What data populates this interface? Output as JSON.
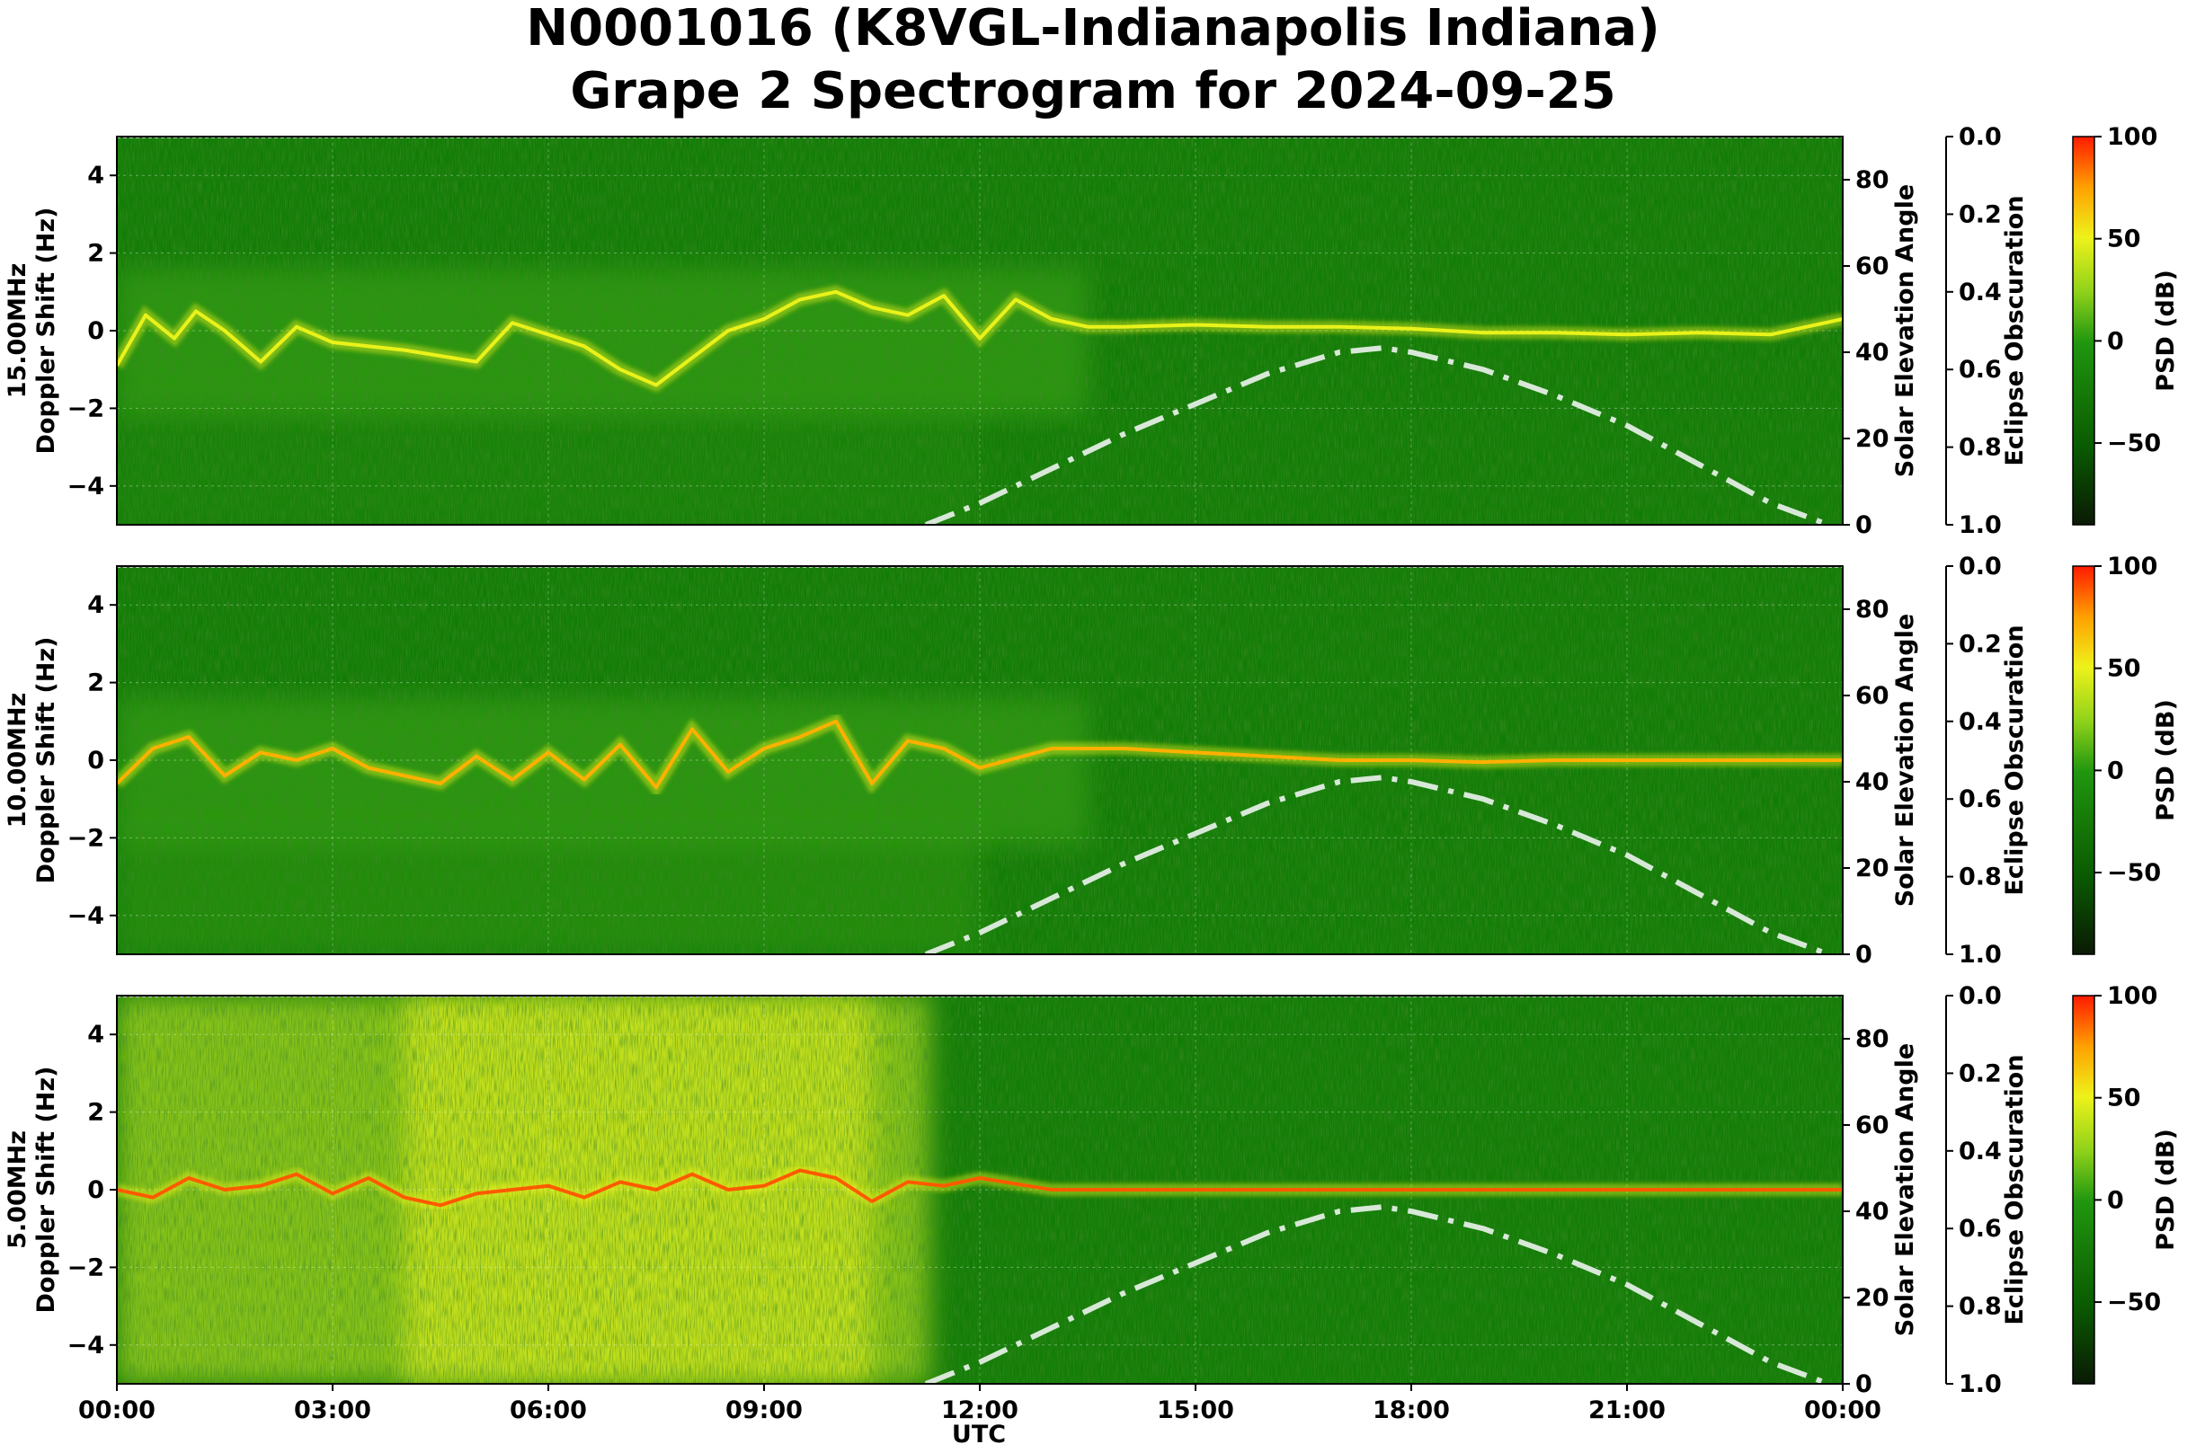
{
  "title": {
    "line1": "N0001016 (K8VGL-Indianapolis Indiana)",
    "line2": "Grape 2 Spectrogram for 2024-09-25"
  },
  "chart_data": {
    "type": "heatmap",
    "xlabel": "UTC",
    "x_ticks": [
      "00:00",
      "03:00",
      "06:00",
      "09:00",
      "12:00",
      "15:00",
      "18:00",
      "21:00",
      "00:00"
    ],
    "x_range_hours": [
      0,
      24
    ],
    "colormap": [
      "#0a1a05",
      "#0a6e00",
      "#2ea31a",
      "#e8f21a",
      "#ff9a00",
      "#ff1a00"
    ],
    "panels": [
      {
        "frequency": "15.00MHz",
        "ylabel": "Doppler Shift (Hz)",
        "ylim": [
          -5,
          5
        ],
        "y_ticks": [
          "4",
          "2",
          "0",
          "−2",
          "−4"
        ],
        "y2label": "Solar Elevation Angle",
        "y2lim": [
          0,
          90
        ],
        "y2_ticks": [
          "80",
          "60",
          "40",
          "20",
          "0"
        ],
        "y3label": "Eclipse Obscuration",
        "y3_ticks": [
          "0.0",
          "0.2",
          "0.4",
          "0.6",
          "0.8",
          "1.0"
        ],
        "colorbar_label": "PSD (dB)",
        "colorbar_range": [
          -90,
          100
        ],
        "colorbar_ticks": [
          "100",
          "50",
          "0",
          "−50"
        ],
        "trace": {
          "hours": [
            0,
            0.4,
            0.8,
            1.1,
            1.5,
            2,
            2.5,
            3,
            4,
            5,
            5.5,
            6.5,
            7,
            7.5,
            8.5,
            9,
            9.5,
            10,
            10.5,
            11,
            11.5,
            12,
            12.5,
            13,
            13.5,
            14,
            15,
            16,
            17,
            18,
            19,
            20,
            21,
            22,
            23,
            24
          ],
          "doppler_hz": [
            -0.9,
            0.4,
            -0.2,
            0.5,
            0,
            -0.8,
            0.1,
            -0.3,
            -0.5,
            -0.8,
            0.2,
            -0.4,
            -1,
            -1.4,
            0,
            0.3,
            0.8,
            1,
            0.6,
            0.4,
            0.9,
            -0.2,
            0.8,
            0.3,
            0.1,
            0.1,
            0.15,
            0.1,
            0.1,
            0.05,
            -0.05,
            -0.05,
            -0.1,
            -0.05,
            -0.1,
            0.3
          ]
        }
      },
      {
        "frequency": "10.00MHz",
        "ylabel": "Doppler Shift (Hz)",
        "ylim": [
          -5,
          5
        ],
        "y_ticks": [
          "4",
          "2",
          "0",
          "−2",
          "−4"
        ],
        "y2label": "Solar Elevation Angle",
        "y2lim": [
          0,
          90
        ],
        "y2_ticks": [
          "80",
          "60",
          "40",
          "20",
          "0"
        ],
        "y3label": "Eclipse Obscuration",
        "y3_ticks": [
          "0.0",
          "0.2",
          "0.4",
          "0.6",
          "0.8",
          "1.0"
        ],
        "colorbar_label": "PSD (dB)",
        "colorbar_range": [
          -90,
          100
        ],
        "colorbar_ticks": [
          "100",
          "50",
          "0",
          "−50"
        ],
        "trace": {
          "hours": [
            0,
            0.5,
            1,
            1.5,
            2,
            2.5,
            3,
            3.5,
            4,
            4.5,
            5,
            5.5,
            6,
            6.5,
            7,
            7.5,
            8,
            8.5,
            9,
            9.5,
            10,
            10.5,
            11,
            11.5,
            12,
            13,
            14,
            15,
            16,
            17,
            18,
            19,
            20,
            21,
            22,
            23,
            24
          ],
          "doppler_hz": [
            -0.6,
            0.3,
            0.6,
            -0.4,
            0.2,
            0,
            0.3,
            -0.2,
            -0.4,
            -0.6,
            0.1,
            -0.5,
            0.2,
            -0.5,
            0.4,
            -0.7,
            0.8,
            -0.3,
            0.3,
            0.6,
            1,
            -0.6,
            0.5,
            0.3,
            -0.2,
            0.3,
            0.3,
            0.2,
            0.1,
            0,
            0,
            -0.05,
            0,
            0,
            0,
            0,
            0
          ]
        }
      },
      {
        "frequency": "5.00MHz",
        "ylabel": "Doppler Shift (Hz)",
        "ylim": [
          -5,
          5
        ],
        "y_ticks": [
          "4",
          "2",
          "0",
          "−2",
          "−4"
        ],
        "y2label": "Solar Elevation Angle",
        "y2lim": [
          0,
          90
        ],
        "y2_ticks": [
          "80",
          "60",
          "40",
          "20",
          "0"
        ],
        "y3label": "Eclipse Obscuration",
        "y3_ticks": [
          "0.0",
          "0.2",
          "0.4",
          "0.6",
          "0.8",
          "1.0"
        ],
        "colorbar_label": "PSD (dB)",
        "colorbar_range": [
          -90,
          100
        ],
        "colorbar_ticks": [
          "100",
          "50",
          "0",
          "−50"
        ],
        "trace": {
          "hours": [
            0,
            0.5,
            1,
            1.5,
            2,
            2.5,
            3,
            3.5,
            4,
            4.5,
            5,
            5.5,
            6,
            6.5,
            7,
            7.5,
            8,
            8.5,
            9,
            9.5,
            10,
            10.5,
            11,
            11.5,
            12,
            13,
            24
          ],
          "doppler_hz": [
            0,
            -0.2,
            0.3,
            0,
            0.1,
            0.4,
            -0.1,
            0.3,
            -0.2,
            -0.4,
            -0.1,
            0,
            0.1,
            -0.2,
            0.2,
            0,
            0.4,
            0,
            0.1,
            0.5,
            0.3,
            -0.3,
            0.2,
            0.1,
            0.3,
            0,
            0
          ]
        }
      }
    ],
    "solar_elevation": {
      "style": "dash-dot",
      "color": "#d8e8d8",
      "hours": [
        11.25,
        12,
        13,
        14,
        15,
        16,
        17,
        17.6,
        18,
        19,
        20,
        21,
        22,
        23,
        23.8
      ],
      "degrees": [
        0,
        5,
        13,
        21,
        28,
        35,
        40,
        41,
        40,
        36,
        30,
        23,
        14,
        5,
        0
      ]
    }
  }
}
